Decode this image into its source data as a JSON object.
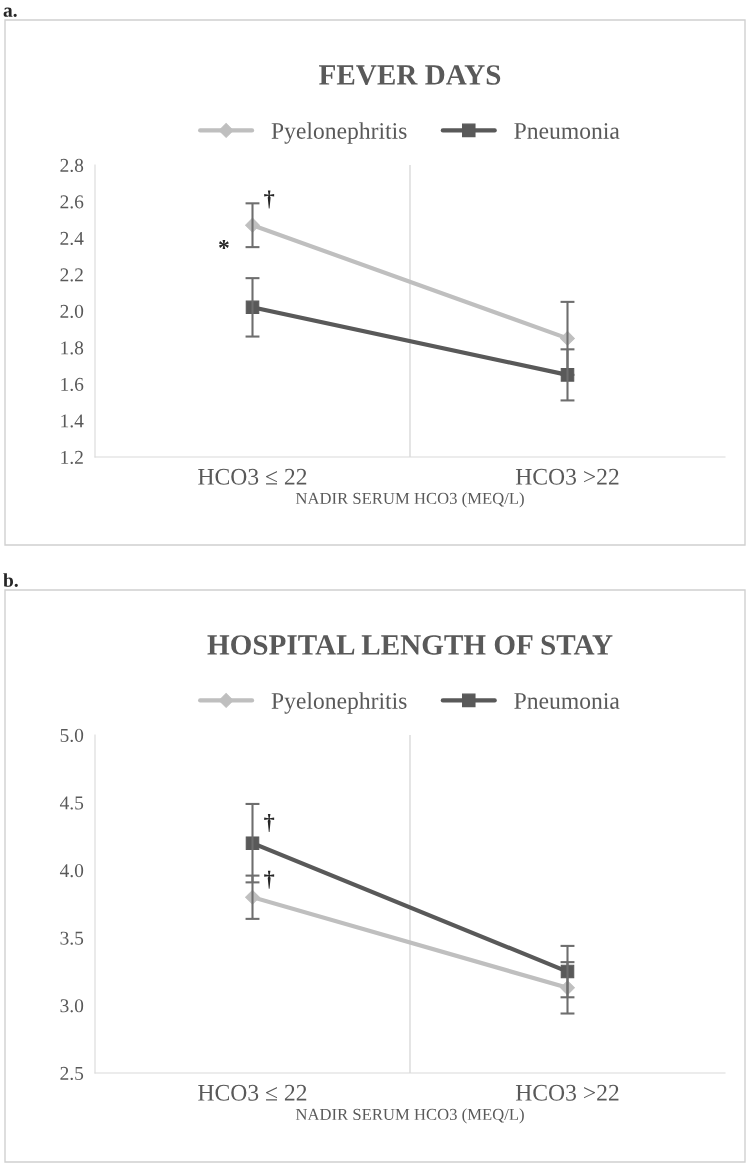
{
  "chart_data": [
    {
      "type": "line",
      "title": "FEVER DAYS",
      "xlabel": "NADIR SERUM HCO3 (MEQ/L)",
      "categories": [
        "HCO3 ≤ 22",
        "HCO3 >22"
      ],
      "series": [
        {
          "name": "Pyelonephritis",
          "color": "#bfbfbf",
          "marker": "diamond",
          "values": [
            2.47,
            1.85
          ],
          "errors": [
            0.12,
            0.2
          ]
        },
        {
          "name": "Pneumonia",
          "color": "#595959",
          "marker": "square",
          "values": [
            2.02,
            1.65
          ],
          "errors": [
            0.16,
            0.14
          ]
        }
      ],
      "ylim": [
        1.2,
        2.8
      ],
      "yticks": [
        1.2,
        1.4,
        1.6,
        1.8,
        {
          "value": 2.0,
          "label": "2.0"
        },
        2.2,
        2.4,
        2.6,
        2.8
      ],
      "grid": "x",
      "legend": "top",
      "line_style": "solid",
      "annotations": [
        "a.",
        {
          "text": "†",
          "x": "HCO3 ≤ 22",
          "y": 2.56
        },
        "*"
      ]
    },
    {
      "type": "line",
      "title": "HOSPITAL LENGTH OF STAY",
      "xlabel": "NADIR SERUM HCO3 (MEQ/L)",
      "categories": [
        "HCO3 ≤ 22",
        "HCO3 >22"
      ],
      "series": [
        {
          "name": "Pyelonephritis",
          "color": "#bfbfbf",
          "marker": "diamond",
          "values": [
            3.8,
            3.13
          ],
          "errors": [
            0.16,
            0.19
          ]
        },
        {
          "name": "Pneumonia",
          "color": "#595959",
          "marker": "square",
          "values": [
            4.2,
            3.25
          ],
          "errors": [
            0.29,
            0.19
          ]
        }
      ],
      "ylim": [
        2.5,
        5.0
      ],
      "yticks": [
        2.5,
        {
          "value": 3.0,
          "label": "3.0"
        },
        3.5,
        {
          "value": 4.0,
          "label": "4.0"
        },
        4.5,
        {
          "value": 5.0,
          "label": "5.0"
        }
      ],
      "grid": "x",
      "legend": "top",
      "line_style": "solid",
      "annotations": [
        "b.",
        {
          "text": "†",
          "x": "HCO3 ≤ 22",
          "y": 4.28
        },
        {
          "text": "†",
          "x": "HCO3 ≤ 22",
          "y": 3.86
        }
      ]
    }
  ]
}
